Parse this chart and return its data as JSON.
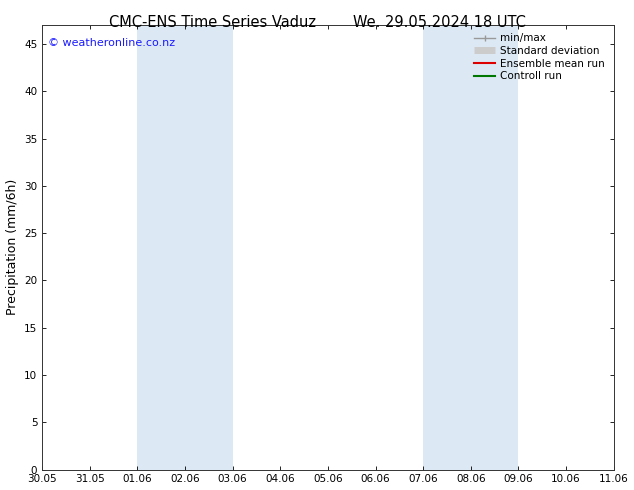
{
  "title_left": "CMC-ENS Time Series Vaduz",
  "title_right": "We. 29.05.2024 18 UTC",
  "ylabel": "Precipitation (mm/6h)",
  "watermark": "© weatheronline.co.nz",
  "watermark_color": "#1a1aff",
  "x_tick_labels": [
    "30.05",
    "31.05",
    "01.06",
    "02.06",
    "03.06",
    "04.06",
    "05.06",
    "06.06",
    "07.06",
    "08.06",
    "09.06",
    "10.06",
    "11.06"
  ],
  "x_tick_positions": [
    0,
    1,
    2,
    3,
    4,
    5,
    6,
    7,
    8,
    9,
    10,
    11,
    12
  ],
  "ylim": [
    0,
    47
  ],
  "yticks": [
    0,
    5,
    10,
    15,
    20,
    25,
    30,
    35,
    40,
    45
  ],
  "shaded_regions": [
    {
      "x_start": 2,
      "x_end": 3,
      "color": "#dce9f5"
    },
    {
      "x_start": 3,
      "x_end": 4,
      "color": "#dce9f5"
    },
    {
      "x_start": 8,
      "x_end": 9,
      "color": "#dce9f5"
    },
    {
      "x_start": 9,
      "x_end": 10,
      "color": "#dce9f5"
    }
  ],
  "bg_color": "#ffffff",
  "plot_bg_color": "#ffffff",
  "legend_items": [
    {
      "label": "min/max",
      "color": "#999999",
      "lw": 1.0,
      "ls": "-"
    },
    {
      "label": "Standard deviation",
      "color": "#cccccc",
      "lw": 5,
      "ls": "-"
    },
    {
      "label": "Ensemble mean run",
      "color": "#dd0000",
      "lw": 1.5,
      "ls": "-"
    },
    {
      "label": "Controll run",
      "color": "#007700",
      "lw": 1.5,
      "ls": "-"
    }
  ],
  "spine_color": "#333333",
  "title_fontsize": 10.5,
  "label_fontsize": 9,
  "tick_fontsize": 7.5,
  "legend_fontsize": 7.5
}
